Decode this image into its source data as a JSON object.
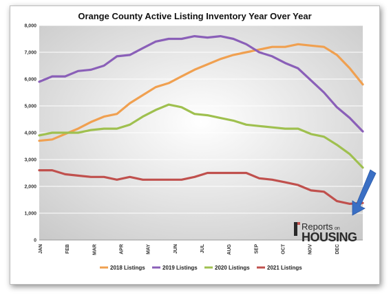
{
  "chart_data": {
    "type": "line",
    "title": "Orange County Active Listing Inventory Year Over Year",
    "xlabel": "",
    "ylabel": "",
    "ylim": [
      0,
      8000
    ],
    "yticks": [
      "0",
      "1,000",
      "2,000",
      "3,000",
      "4,000",
      "5,000",
      "6,000",
      "7,000",
      "8,000"
    ],
    "xticks": [
      "JAN",
      "FEB",
      "MAR",
      "APR",
      "MAY",
      "JUN",
      "JUL",
      "AUG",
      "SEP",
      "OCT",
      "NOV",
      "DEC"
    ],
    "x_points_per_series": 26,
    "grid": true,
    "legend_position": "bottom",
    "series": [
      {
        "name": "2018 Listings",
        "color": "#f0a050",
        "values": [
          3700,
          3750,
          3950,
          4150,
          4400,
          4600,
          4700,
          5100,
          5400,
          5700,
          5850,
          6100,
          6350,
          6550,
          6750,
          6900,
          7000,
          7100,
          7200,
          7200,
          7300,
          7250,
          7200,
          6900,
          6400,
          5800
        ]
      },
      {
        "name": "2019 Listings",
        "color": "#8a5fb8",
        "values": [
          5900,
          6100,
          6100,
          6300,
          6350,
          6500,
          6850,
          6900,
          7150,
          7400,
          7500,
          7500,
          7600,
          7550,
          7600,
          7500,
          7300,
          7000,
          6850,
          6600,
          6400,
          5950,
          5500,
          4950,
          4550,
          4050
        ]
      },
      {
        "name": "2020 Listings",
        "color": "#9fc04f",
        "values": [
          3900,
          4000,
          4000,
          4000,
          4100,
          4150,
          4150,
          4300,
          4600,
          4850,
          5050,
          4950,
          4700,
          4650,
          4550,
          4450,
          4300,
          4250,
          4200,
          4150,
          4150,
          3950,
          3850,
          3550,
          3200,
          2700
        ]
      },
      {
        "name": "2021 Listings",
        "color": "#c0504d",
        "values": [
          2600,
          2600,
          2450,
          2400,
          2350,
          2350,
          2250,
          2350,
          2250,
          2250,
          2250,
          2250,
          2350,
          2500,
          2500,
          2500,
          2500,
          2300,
          2250,
          2150,
          2050,
          1850,
          1800,
          1450,
          1350,
          1380
        ]
      }
    ]
  },
  "logo": {
    "top": "Reports",
    "small": "on",
    "bottom": "HOUSING"
  },
  "annotation_arrow_color": "#3a6fc4"
}
